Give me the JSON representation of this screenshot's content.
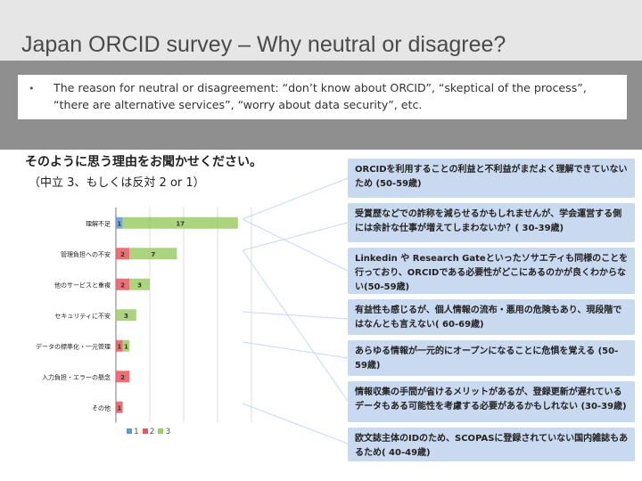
{
  "slide": {
    "title": "Japan ORCID survey – Why neutral or disagree?",
    "bullet": "The reason for neutral or disagreement: “don’t know about ORCID”, “skeptical of the process”, “there are alternative services”, “worry about data security”, etc.",
    "question_line1": "そのように思う理由をお聞かせください。",
    "question_line2": "（中立 3、もしくは反対 2 or 1）"
  },
  "colors": {
    "series1": "#5b9bd5",
    "series2": "#e8575a",
    "series3": "#9ccc65",
    "comment_bg": "#c9d9ef"
  },
  "chart_data": {
    "type": "bar",
    "orientation": "horizontal",
    "stacked": true,
    "categories": [
      "理解不足",
      "管理負担への不安",
      "他のサービスと重複",
      "セキュリティに不安",
      "データの標準化・一元管理",
      "入力負担・エラーの懸念",
      "その他"
    ],
    "series": [
      {
        "name": "1",
        "values": [
          1,
          0,
          0,
          0,
          0,
          0,
          0
        ]
      },
      {
        "name": "2",
        "values": [
          0,
          2,
          2,
          0,
          1,
          2,
          1
        ]
      },
      {
        "name": "3",
        "values": [
          17,
          7,
          3,
          3,
          1,
          0,
          0
        ]
      }
    ],
    "xticks": [
      "0",
      "5",
      "10",
      "15",
      "20"
    ],
    "xlim": [
      0,
      20
    ],
    "legend_position": "bottom"
  },
  "comments": [
    "ORCIDを利用することの利益と不利益がまだよく理解できていないため (50-59歳)",
    "受賞歴などでの詐称を減らせるかもしれませんが、学会運営する側には余計な仕事が増えてしまわないか？( 30-39歳)",
    "Linkedin や Research Gateといったソサエティも同様のことを行っており、ORCIDである必要性がどこにあるのかが良くわからない(50-59歳)",
    "有益性も感じるが、個人情報の流布・悪用の危険もあり、現段階ではなんとも言えない( 60-69歳)",
    "あらゆる情報が一元的にオープンになることに危惧を覚える (50-59歳)",
    "情報収集の手間が省けるメリットがあるが、登録更新が遅れているデータもある可能性を考慮する必要があるかもしれない (30-39歳)",
    "欧文誌主体のIDのため、SCOPASに登録されていない国内雑誌もあるため( 40-49歳)"
  ]
}
